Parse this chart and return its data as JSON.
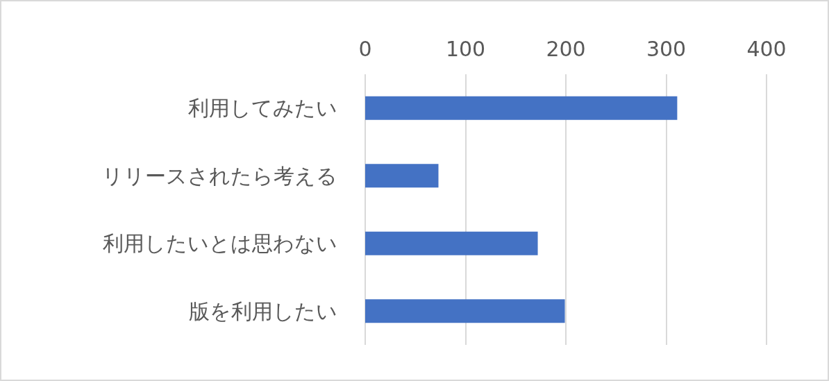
{
  "chart_data": {
    "type": "bar",
    "orientation": "horizontal",
    "categories": [
      "利用してみたい",
      "リリースされたら考える",
      "利用したいとは思わない",
      "版を利用したい"
    ],
    "values": [
      311,
      73,
      172,
      199
    ],
    "color": "#4472c4",
    "xlim": [
      0,
      400
    ],
    "xticks": [
      0,
      100,
      200,
      300,
      400
    ],
    "grid": "x"
  }
}
